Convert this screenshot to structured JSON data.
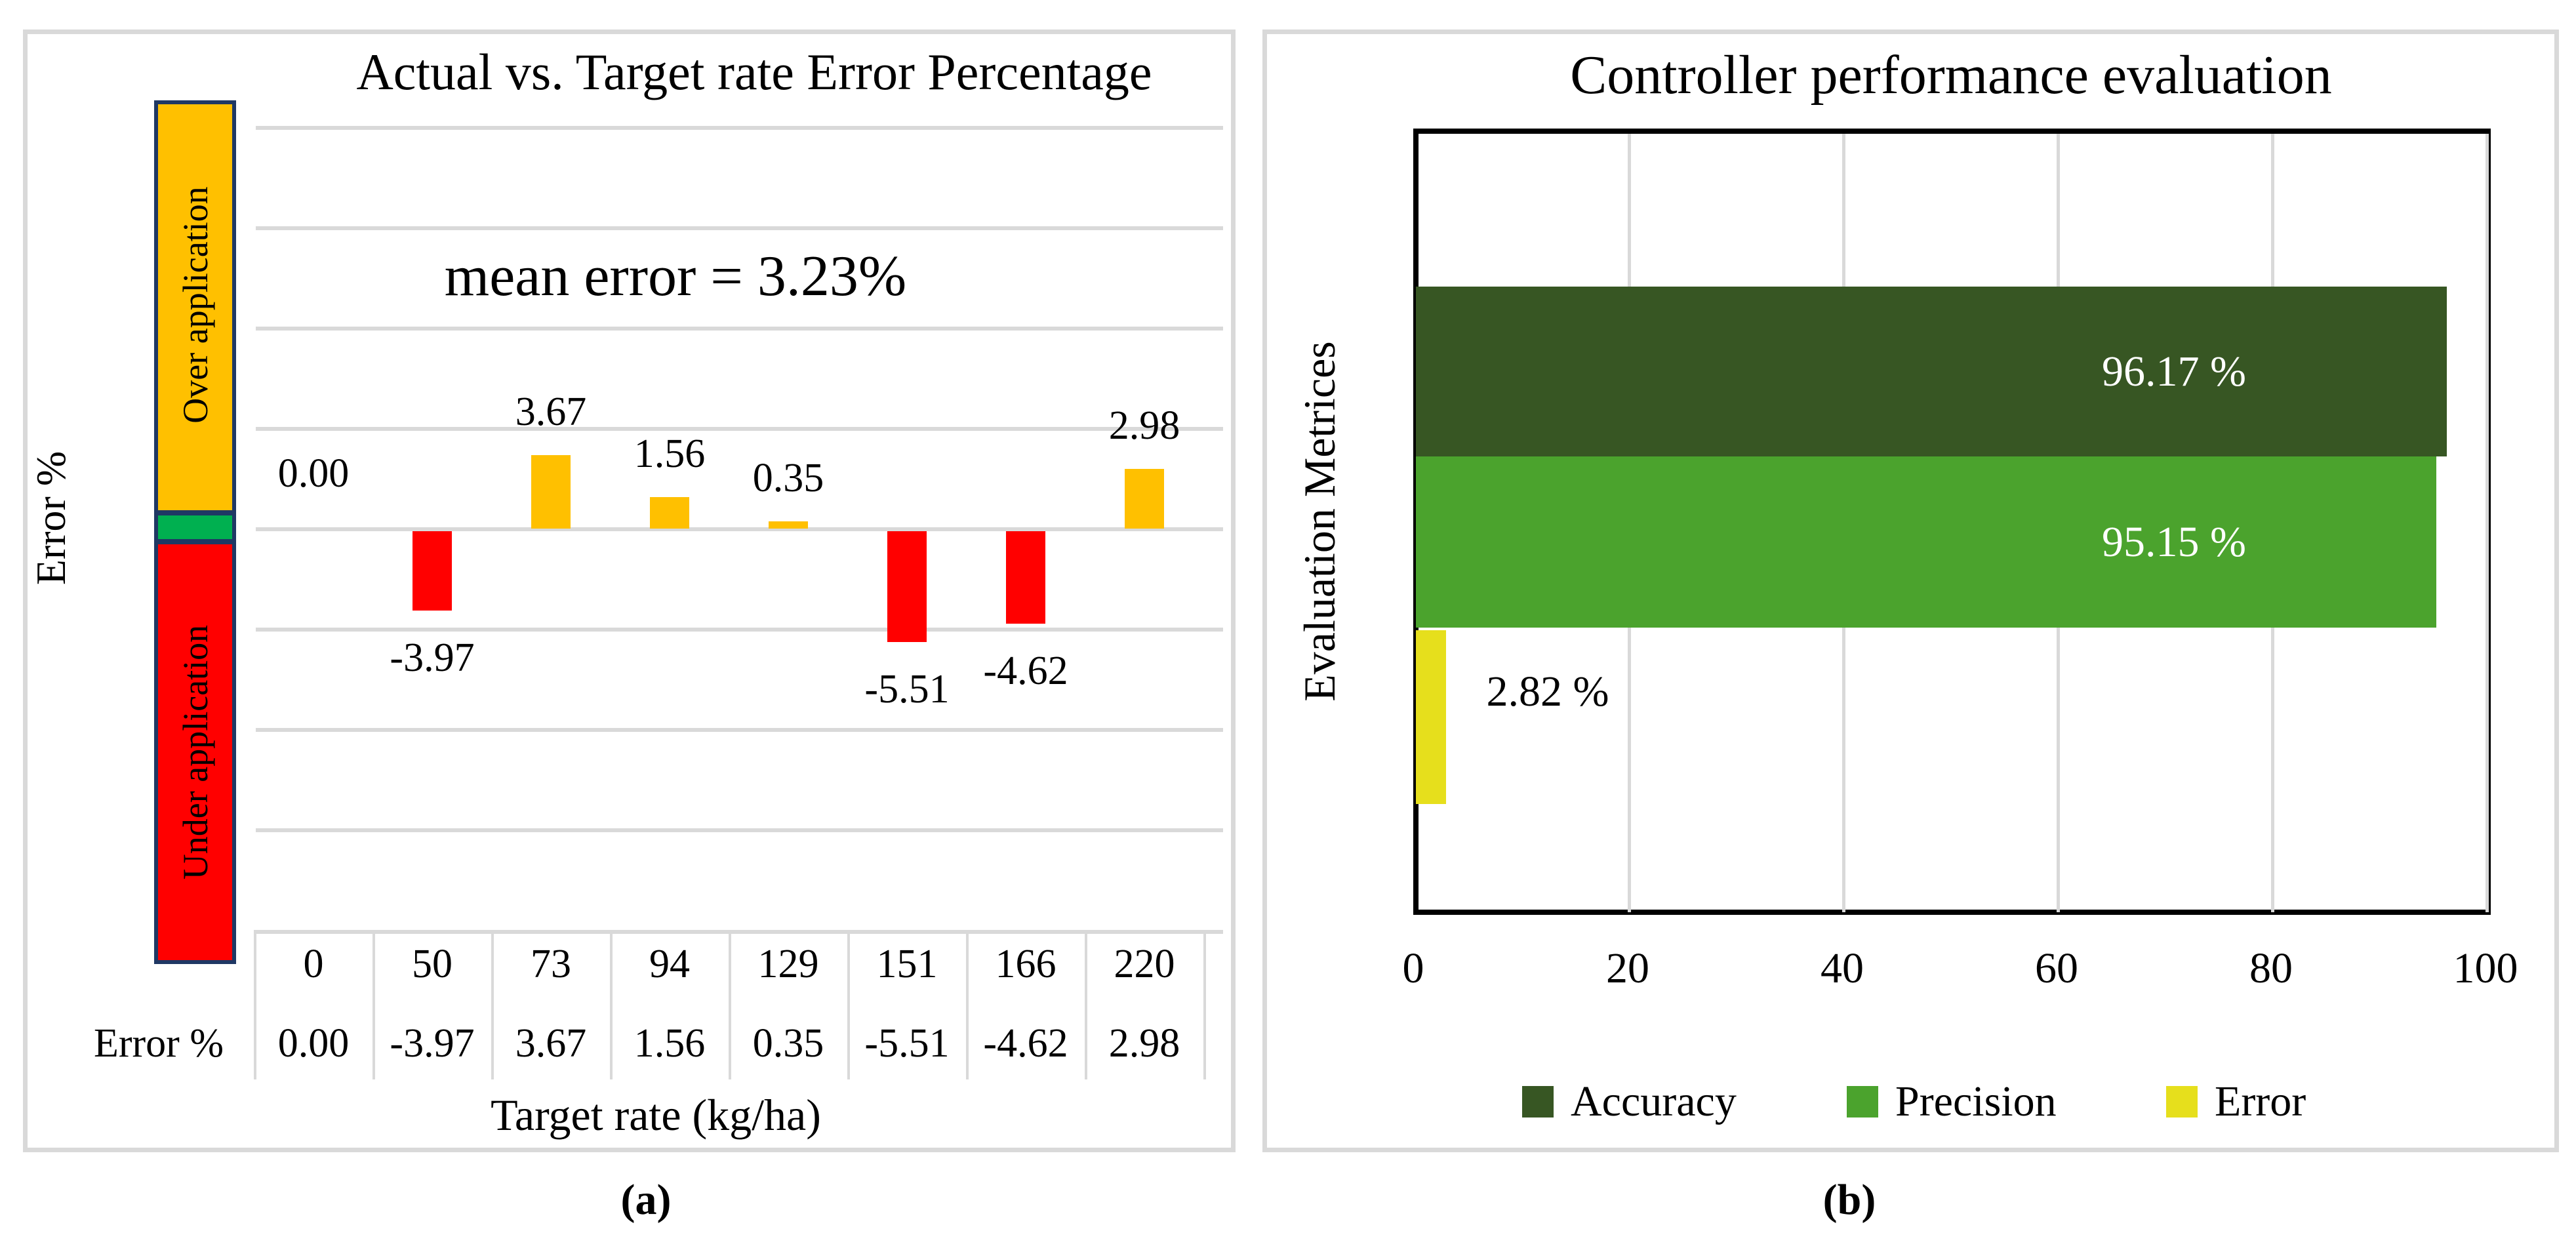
{
  "figure": {
    "panel_a": {
      "title": "Actual vs. Target rate Error Percentage",
      "annotation": "mean error = 3.23%",
      "y_axis_label": "Error  %",
      "x_axis_label": "Target rate (kg/ha)",
      "indicator": {
        "over_label": "Over application",
        "under_label": "Under application",
        "over_color": "#FFC000",
        "band_color": "#00B050",
        "under_color": "#FF0000",
        "border_color": "#1F3864"
      },
      "table_row_header": "Error %",
      "caption": "(a)"
    },
    "panel_b": {
      "title": "Controller performance evaluation",
      "y_axis_label": "Evaluation Metrices",
      "caption": "(b)"
    }
  },
  "chart_data": [
    {
      "type": "bar",
      "title": "Actual vs. Target rate Error Percentage",
      "xlabel": "Target rate (kg/ha)",
      "ylabel": "Error %",
      "categories": [
        "0",
        "50",
        "73",
        "94",
        "129",
        "151",
        "166",
        "220"
      ],
      "values": [
        0.0,
        -3.97,
        3.67,
        1.56,
        0.35,
        -5.51,
        -4.62,
        2.98
      ],
      "value_labels": [
        "0.00",
        "-3.97",
        "3.67",
        "1.56",
        "0.35",
        "-5.51",
        "-4.62",
        "2.98"
      ],
      "annotation": "mean error = 3.23%",
      "ylim": [
        -20,
        20
      ],
      "grid_step": 5,
      "grid": "horizontal",
      "positive_color": "#FFC000",
      "negative_color": "#FF0000"
    },
    {
      "type": "bar",
      "orientation": "horizontal",
      "title": "Controller performance evaluation",
      "ylabel": "Evaluation Metrices",
      "categories": [
        "Accuracy",
        "Precision",
        "Error"
      ],
      "values": [
        96.17,
        95.15,
        2.82
      ],
      "value_labels": [
        "96.17 %",
        "95.15 %",
        "2.82 %"
      ],
      "colors": [
        "#375623",
        "#4BA32D",
        "#E6DF1C"
      ],
      "xlim": [
        0,
        100
      ],
      "xticks": [
        "0",
        "20",
        "40",
        "60",
        "80",
        "100"
      ],
      "legend": [
        "Accuracy",
        "Precision",
        "Error"
      ],
      "legend_position": "bottom",
      "grid": "vertical"
    }
  ]
}
